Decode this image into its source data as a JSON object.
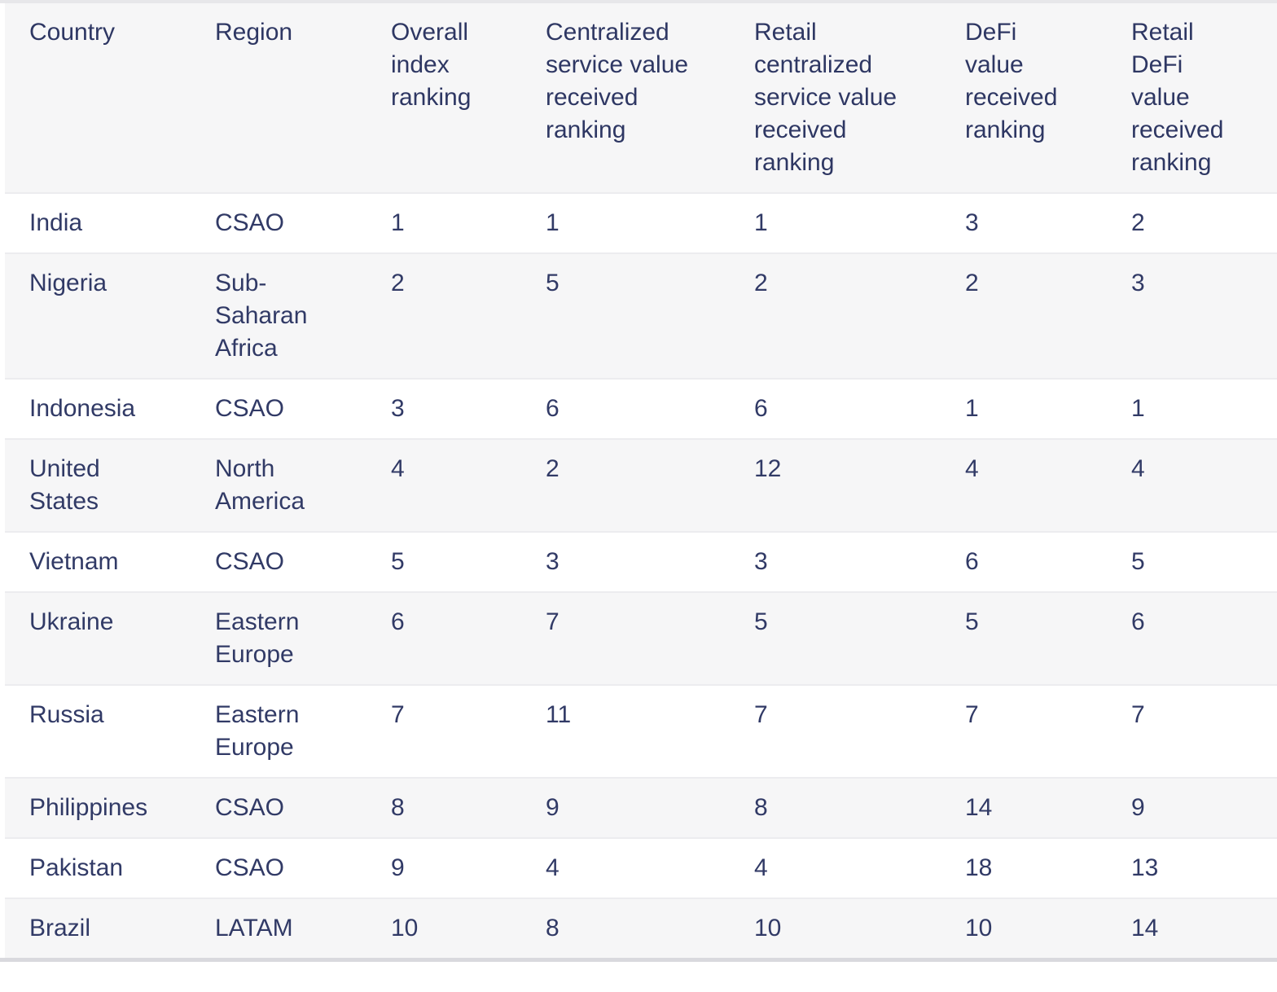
{
  "colors": {
    "text": "#313a66",
    "header_text": "#2e3763",
    "zebra_bg": "#f6f6f7",
    "row_bg": "#ffffff",
    "row_border": "#ececef",
    "top_border": "#e7e7ea",
    "bottom_border": "#d9d9de"
  },
  "chart_data": {
    "type": "table",
    "columns": [
      "Country",
      "Region",
      "Overall index ranking",
      "Centralized service value received ranking",
      "Retail centralized service value received ranking",
      "DeFi value received ranking",
      "Retail DeFi value received ranking"
    ],
    "rows": [
      {
        "country": "India",
        "region": "CSAO",
        "overall": "1",
        "centralized": "1",
        "retail_centralized": "1",
        "defi": "3",
        "retail_defi": "2"
      },
      {
        "country": "Nigeria",
        "region": "Sub-Saharan Africa",
        "overall": "2",
        "centralized": "5",
        "retail_centralized": "2",
        "defi": "2",
        "retail_defi": "3"
      },
      {
        "country": "Indonesia",
        "region": "CSAO",
        "overall": "3",
        "centralized": "6",
        "retail_centralized": "6",
        "defi": "1",
        "retail_defi": "1"
      },
      {
        "country": "United States",
        "region": "North America",
        "overall": "4",
        "centralized": "2",
        "retail_centralized": "12",
        "defi": "4",
        "retail_defi": "4"
      },
      {
        "country": "Vietnam",
        "region": "CSAO",
        "overall": "5",
        "centralized": "3",
        "retail_centralized": "3",
        "defi": "6",
        "retail_defi": "5"
      },
      {
        "country": "Ukraine",
        "region": "Eastern Europe",
        "overall": "6",
        "centralized": "7",
        "retail_centralized": "5",
        "defi": "5",
        "retail_defi": "6"
      },
      {
        "country": "Russia",
        "region": "Eastern Europe",
        "overall": "7",
        "centralized": "11",
        "retail_centralized": "7",
        "defi": "7",
        "retail_defi": "7"
      },
      {
        "country": "Philippines",
        "region": "CSAO",
        "overall": "8",
        "centralized": "9",
        "retail_centralized": "8",
        "defi": "14",
        "retail_defi": "9"
      },
      {
        "country": "Pakistan",
        "region": "CSAO",
        "overall": "9",
        "centralized": "4",
        "retail_centralized": "4",
        "defi": "18",
        "retail_defi": "13"
      },
      {
        "country": "Brazil",
        "region": "LATAM",
        "overall": "10",
        "centralized": "8",
        "retail_centralized": "10",
        "defi": "10",
        "retail_defi": "14"
      }
    ]
  }
}
